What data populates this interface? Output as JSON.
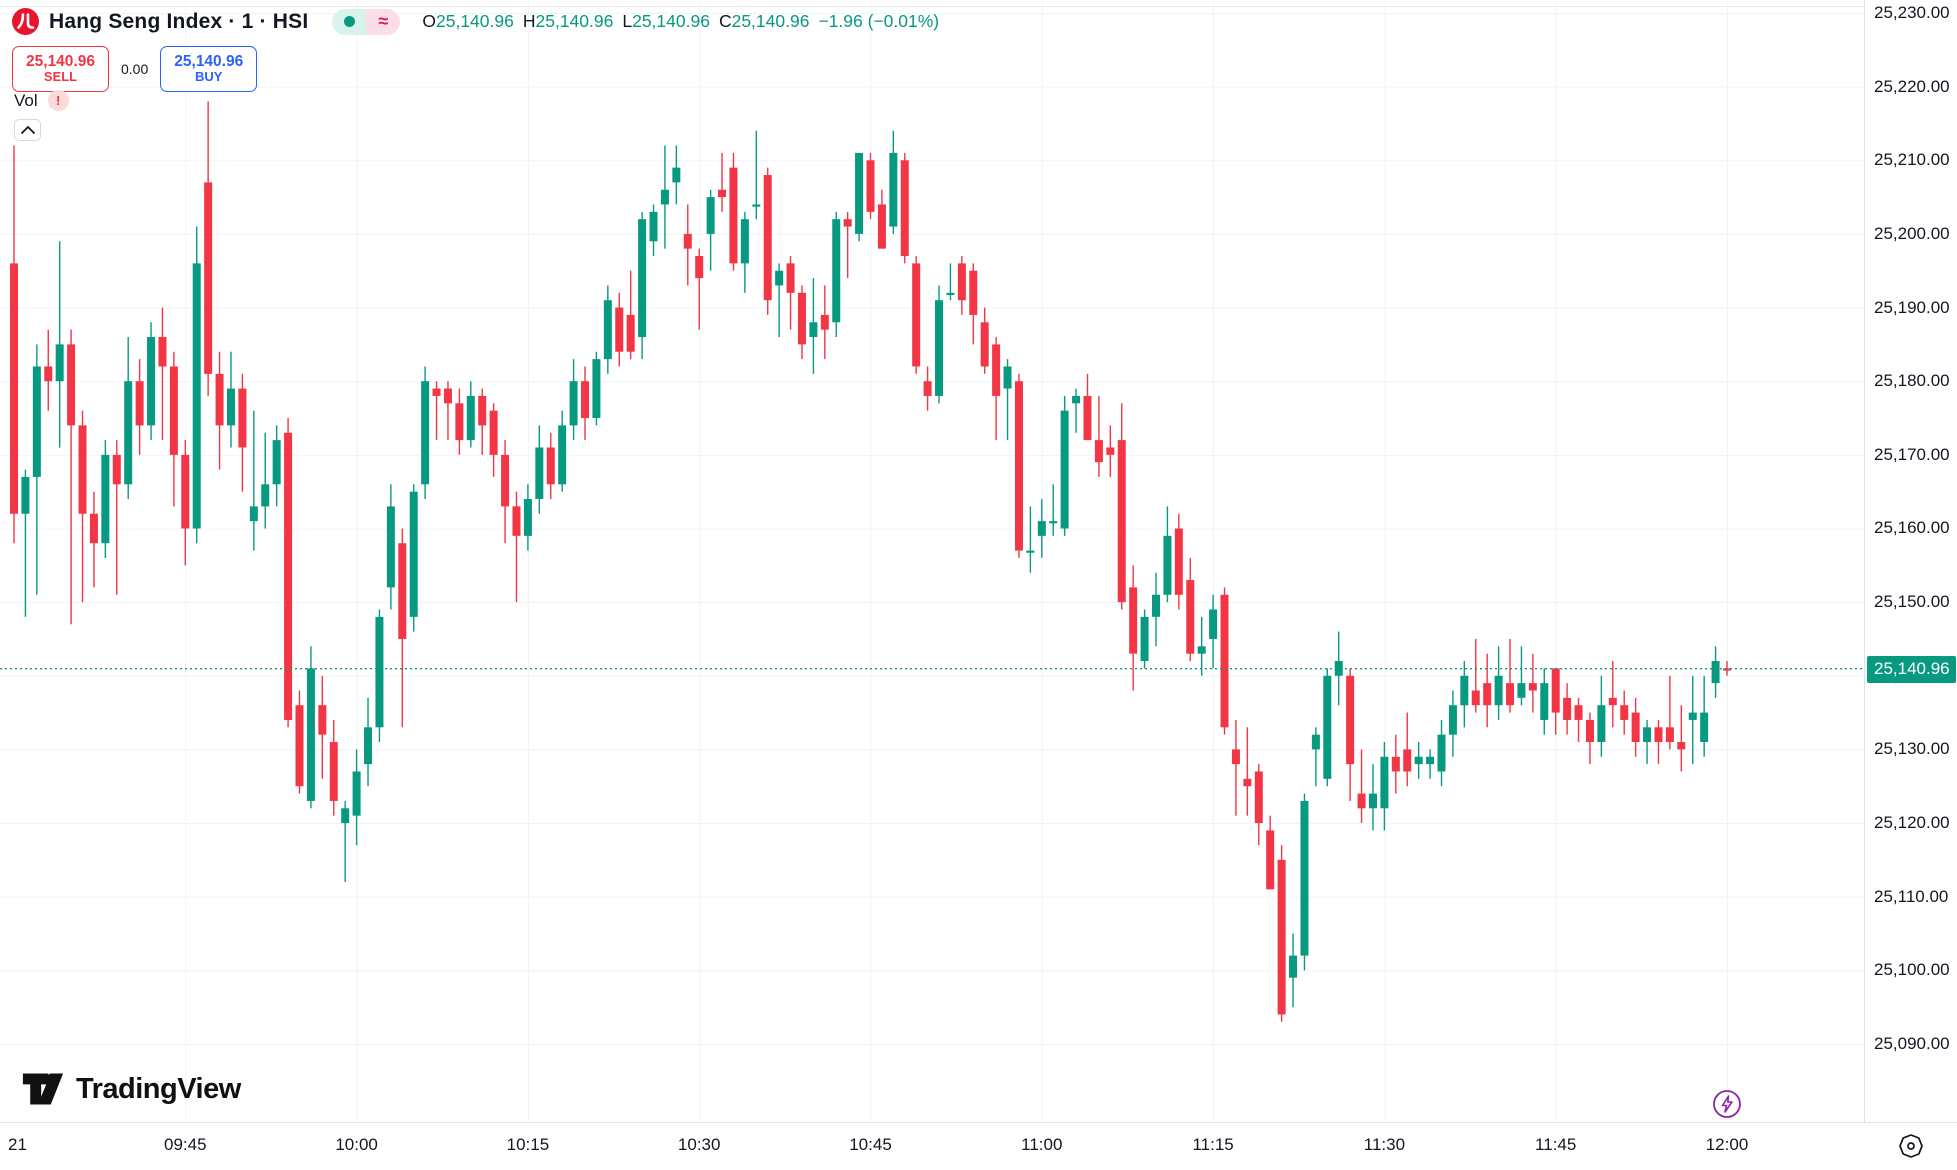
{
  "header": {
    "symbol_title": "Hang Seng Index · 1 · HSI",
    "market_status_icon": "market-open-dot",
    "approx_symbol": "≈",
    "ohlc": {
      "o_label": "O",
      "o_value": "25,140.96",
      "h_label": "H",
      "h_value": "25,140.96",
      "l_label": "L",
      "l_value": "25,140.96",
      "c_label": "C",
      "c_value": "25,140.96",
      "change": "−1.96 (−0.01%)"
    },
    "sell_button": {
      "price": "25,140.96",
      "label": "SELL"
    },
    "spread": "0.00",
    "buy_button": {
      "price": "25,140.96",
      "label": "BUY"
    },
    "volume_label": "Vol",
    "volume_warning": "!"
  },
  "price_axis": {
    "ticks": [
      25230,
      25220,
      25210,
      25200,
      25190,
      25180,
      25170,
      25160,
      25150,
      25140,
      25130,
      25120,
      25110,
      25100,
      25090
    ],
    "tick_labels": [
      "25,230.00",
      "25,220.00",
      "25,210.00",
      "25,200.00",
      "25,190.00",
      "25,180.00",
      "25,170.00",
      "25,160.00",
      "25,150.00",
      "25,140.00",
      "25,130.00",
      "25,120.00",
      "25,110.00",
      "25,100.00",
      "25,090.00"
    ],
    "current_price_label": "25,140.96"
  },
  "time_axis": {
    "labels": [
      {
        "text": "21",
        "minute": 0
      },
      {
        "text": "09:45",
        "minute": 15
      },
      {
        "text": "10:00",
        "minute": 30
      },
      {
        "text": "10:15",
        "minute": 45
      },
      {
        "text": "10:30",
        "minute": 60
      },
      {
        "text": "10:45",
        "minute": 75
      },
      {
        "text": "11:00",
        "minute": 90
      },
      {
        "text": "11:15",
        "minute": 105
      },
      {
        "text": "11:30",
        "minute": 120
      },
      {
        "text": "11:45",
        "minute": 135
      },
      {
        "text": "12:00",
        "minute": 150
      }
    ]
  },
  "footer": {
    "logo_text": "TradingView"
  },
  "chart_data": {
    "type": "candlestick",
    "title": "Hang Seng Index (HSI), 1-minute candles",
    "time_start": "09:30",
    "time_end": "12:00",
    "interval_minutes": 1,
    "ylim": [
      25085,
      25232
    ],
    "grid": true,
    "current_price": 25140.96,
    "colors": {
      "up": "#089981",
      "down": "#f23645",
      "grid": "#f0f3fa",
      "dotted_line": "#089981"
    },
    "candles_format": [
      "open",
      "high",
      "low",
      "close"
    ],
    "candles": [
      [
        25196,
        25212,
        25158,
        25162
      ],
      [
        25162,
        25168,
        25148,
        25167
      ],
      [
        25167,
        25185,
        25151,
        25182
      ],
      [
        25182,
        25187,
        25176,
        25180
      ],
      [
        25180,
        25199,
        25171,
        25185
      ],
      [
        25185,
        25187,
        25147,
        25174
      ],
      [
        25174,
        25176,
        25150,
        25162
      ],
      [
        25162,
        25165,
        25152,
        25158
      ],
      [
        25158,
        25172,
        25156,
        25170
      ],
      [
        25170,
        25172,
        25151,
        25166
      ],
      [
        25166,
        25186,
        25164,
        25180
      ],
      [
        25180,
        25183,
        25170,
        25174
      ],
      [
        25174,
        25188,
        25172,
        25186
      ],
      [
        25186,
        25190,
        25172,
        25182
      ],
      [
        25182,
        25184,
        25163,
        25170
      ],
      [
        25170,
        25172,
        25155,
        25160
      ],
      [
        25160,
        25201,
        25158,
        25196
      ],
      [
        25207,
        25218,
        25178,
        25181
      ],
      [
        25181,
        25184,
        25168,
        25174
      ],
      [
        25174,
        25184,
        25171,
        25179
      ],
      [
        25179,
        25181,
        25165,
        25171
      ],
      [
        25161,
        25176,
        25157,
        25163
      ],
      [
        25163,
        25173,
        25160,
        25166
      ],
      [
        25166,
        25174,
        25163,
        25172
      ],
      [
        25173,
        25175,
        25133,
        25134
      ],
      [
        25136,
        25138,
        25124,
        25125
      ],
      [
        25123,
        25144,
        25122,
        25141
      ],
      [
        25136,
        25140,
        25126,
        25132
      ],
      [
        25131,
        25134,
        25121,
        25123
      ],
      [
        25120,
        25123,
        25112,
        25122
      ],
      [
        25121,
        25130,
        25117,
        25127
      ],
      [
        25128,
        25137,
        25125,
        25133
      ],
      [
        25133,
        25149,
        25131,
        25148
      ],
      [
        25152,
        25166,
        25149,
        25163
      ],
      [
        25158,
        25160,
        25133,
        25145
      ],
      [
        25148,
        25166,
        25146,
        25165
      ],
      [
        25166,
        25182,
        25164,
        25180
      ],
      [
        25179,
        25180,
        25172,
        25178
      ],
      [
        25179,
        25180,
        25172,
        25177
      ],
      [
        25177,
        25179,
        25170,
        25172
      ],
      [
        25172,
        25180,
        25171,
        25178
      ],
      [
        25178,
        25179,
        25170,
        25174
      ],
      [
        25176,
        25177,
        25167,
        25170
      ],
      [
        25170,
        25172,
        25158,
        25163
      ],
      [
        25163,
        25165,
        25150,
        25159
      ],
      [
        25159,
        25166,
        25157,
        25164
      ],
      [
        25164,
        25174,
        25162,
        25171
      ],
      [
        25171,
        25173,
        25164,
        25166
      ],
      [
        25166,
        25176,
        25165,
        25174
      ],
      [
        25174,
        25183,
        25172,
        25180
      ],
      [
        25180,
        25182,
        25172,
        25175
      ],
      [
        25175,
        25184,
        25174,
        25183
      ],
      [
        25183,
        25193,
        25181,
        25191
      ],
      [
        25190,
        25192,
        25182,
        25184
      ],
      [
        25189,
        25195,
        25183,
        25184
      ],
      [
        25186,
        25203,
        25183,
        25202
      ],
      [
        25199,
        25204,
        25197,
        25203
      ],
      [
        25204,
        25212,
        25198,
        25206
      ],
      [
        25207,
        25212,
        25204,
        25209
      ],
      [
        25200,
        25204,
        25193,
        25198
      ],
      [
        25197,
        25198,
        25187,
        25194
      ],
      [
        25200,
        25206,
        25195,
        25205
      ],
      [
        25206,
        25211,
        25203,
        25205
      ],
      [
        25209,
        25211,
        25195,
        25196
      ],
      [
        25196,
        25203,
        25192,
        25202
      ],
      [
        25204,
        25214,
        25202,
        25204
      ],
      [
        25208,
        25209,
        25189,
        25191
      ],
      [
        25193,
        25196,
        25186,
        25195
      ],
      [
        25196,
        25197,
        25187,
        25192
      ],
      [
        25192,
        25193,
        25183,
        25185
      ],
      [
        25186,
        25194,
        25181,
        25188
      ],
      [
        25189,
        25193,
        25183,
        25187
      ],
      [
        25188,
        25203,
        25186,
        25202
      ],
      [
        25202,
        25203,
        25194,
        25201
      ],
      [
        25200,
        25211,
        25199,
        25211
      ],
      [
        25210,
        25211,
        25202,
        25203
      ],
      [
        25204,
        25206,
        25198,
        25198
      ],
      [
        25201,
        25214,
        25200,
        25211
      ],
      [
        25210,
        25211,
        25196,
        25197
      ],
      [
        25196,
        25197,
        25181,
        25182
      ],
      [
        25180,
        25182,
        25176,
        25178
      ],
      [
        25178,
        25193,
        25177,
        25191
      ],
      [
        25192,
        25196,
        25191,
        25192
      ],
      [
        25196,
        25197,
        25189,
        25191
      ],
      [
        25195,
        25196,
        25185,
        25189
      ],
      [
        25188,
        25190,
        25181,
        25182
      ],
      [
        25185,
        25186,
        25172,
        25178
      ],
      [
        25179,
        25183,
        25172,
        25182
      ],
      [
        25180,
        25181,
        25156,
        25157
      ],
      [
        25157,
        25163,
        25154,
        25157
      ],
      [
        25159,
        25164,
        25156,
        25161
      ],
      [
        25161,
        25166,
        25159,
        25161
      ],
      [
        25160,
        25178,
        25159,
        25176
      ],
      [
        25177,
        25179,
        25173,
        25178
      ],
      [
        25178,
        25181,
        25172,
        25172
      ],
      [
        25172,
        25178,
        25167,
        25169
      ],
      [
        25171,
        25174,
        25167,
        25170
      ],
      [
        25172,
        25177,
        25149,
        25150
      ],
      [
        25152,
        25155,
        25138,
        25143
      ],
      [
        25142,
        25149,
        25141,
        25148
      ],
      [
        25148,
        25154,
        25144,
        25151
      ],
      [
        25151,
        25163,
        25150,
        25159
      ],
      [
        25160,
        25162,
        25149,
        25151
      ],
      [
        25153,
        25156,
        25142,
        25143
      ],
      [
        25143,
        25148,
        25140,
        25144
      ],
      [
        25145,
        25151,
        25141,
        25149
      ],
      [
        25151,
        25152,
        25132,
        25133
      ],
      [
        25130,
        25134,
        25121,
        25128
      ],
      [
        25126,
        25133,
        25121,
        25125
      ],
      [
        25127,
        25128,
        25117,
        25120
      ],
      [
        25119,
        25121,
        25111,
        25111
      ],
      [
        25115,
        25117,
        25093,
        25094
      ],
      [
        25099,
        25105,
        25095,
        25102
      ],
      [
        25102,
        25124,
        25100,
        25123
      ],
      [
        25130,
        25133,
        25125,
        25132
      ],
      [
        25126,
        25141,
        25125,
        25140
      ],
      [
        25140,
        25146,
        25136,
        25142
      ],
      [
        25140,
        25141,
        25123,
        25128
      ],
      [
        25124,
        25130,
        25120,
        25122
      ],
      [
        25122,
        25128,
        25119,
        25124
      ],
      [
        25122,
        25131,
        25119,
        25129
      ],
      [
        25129,
        25132,
        25124,
        25127
      ],
      [
        25130,
        25135,
        25125,
        25127
      ],
      [
        25128,
        25131,
        25126,
        25129
      ],
      [
        25128,
        25130,
        25126,
        25129
      ],
      [
        25127,
        25134,
        25125,
        25132
      ],
      [
        25132,
        25138,
        25129,
        25136
      ],
      [
        25136,
        25142,
        25133,
        25140
      ],
      [
        25138,
        25145,
        25135,
        25136
      ],
      [
        25139,
        25143,
        25133,
        25136
      ],
      [
        25136,
        25144,
        25134,
        25140
      ],
      [
        25139,
        25145,
        25135,
        25136
      ],
      [
        25137,
        25144,
        25136,
        25139
      ],
      [
        25139,
        25143,
        25135,
        25138
      ],
      [
        25134,
        25141,
        25132,
        25139
      ],
      [
        25141,
        25141,
        25132,
        25135
      ],
      [
        25137,
        25139,
        25132,
        25134
      ],
      [
        25136,
        25137,
        25131,
        25134
      ],
      [
        25134,
        25135,
        25128,
        25131
      ],
      [
        25131,
        25140,
        25129,
        25136
      ],
      [
        25137,
        25142,
        25133,
        25136
      ],
      [
        25136,
        25138,
        25132,
        25134
      ],
      [
        25135,
        25137,
        25129,
        25131
      ],
      [
        25131,
        25134,
        25128,
        25133
      ],
      [
        25133,
        25134,
        25128,
        25131
      ],
      [
        25133,
        25140,
        25130,
        25131
      ],
      [
        25131,
        25136,
        25127,
        25130
      ],
      [
        25134,
        25140,
        25128,
        25135
      ],
      [
        25131,
        25140,
        25129,
        25135
      ],
      [
        25139,
        25144,
        25137,
        25142
      ],
      [
        25141,
        25142,
        25140,
        25140.96
      ]
    ]
  }
}
